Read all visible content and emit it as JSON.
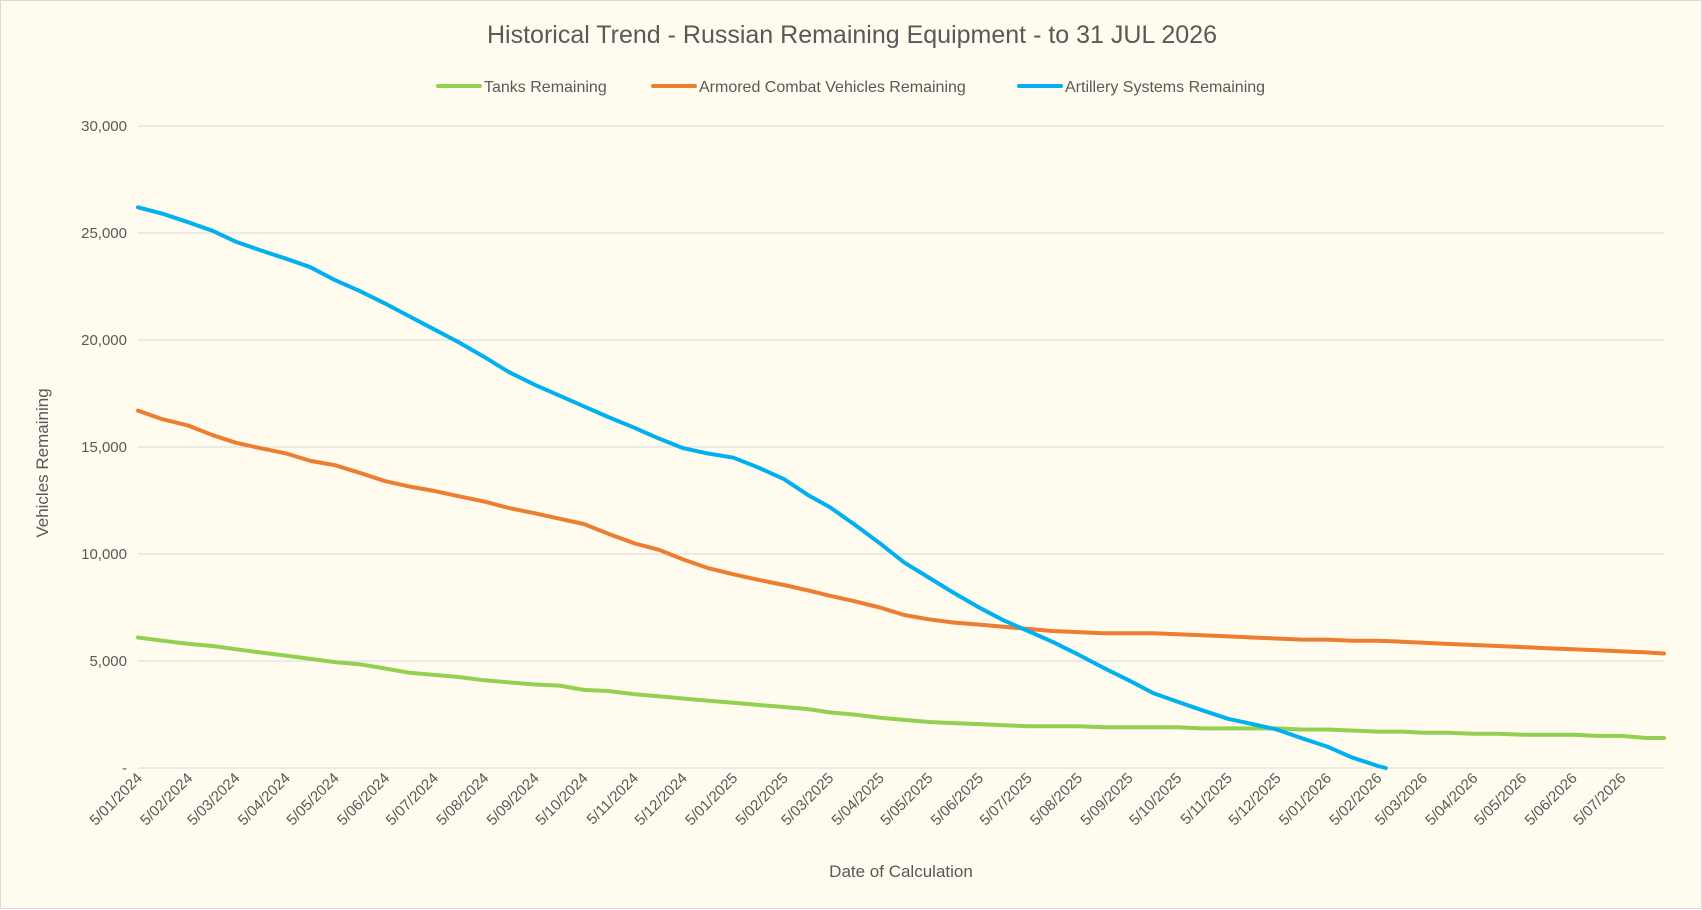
{
  "chart_data": {
    "type": "line",
    "title": "Historical Trend - Russian Remaining Equipment - to 31 JUL 2026",
    "xlabel": "Date of Calculation",
    "ylabel": "Vehicles Remaining",
    "ylim": [
      0,
      30000
    ],
    "y_ticks": [
      0,
      5000,
      10000,
      15000,
      20000,
      25000,
      30000
    ],
    "y_tick_labels": [
      "-",
      "5,000",
      "10,000",
      "15,000",
      "20,000",
      "25,000",
      "30,000"
    ],
    "x_range": [
      "2024-01-05",
      "2026-07-31"
    ],
    "x_tick_dates": [
      "2024-01-05",
      "2024-02-05",
      "2024-03-05",
      "2024-04-05",
      "2024-05-05",
      "2024-06-05",
      "2024-07-05",
      "2024-08-05",
      "2024-09-05",
      "2024-10-05",
      "2024-11-05",
      "2024-12-05",
      "2025-01-05",
      "2025-02-05",
      "2025-03-05",
      "2025-04-05",
      "2025-05-05",
      "2025-06-05",
      "2025-07-05",
      "2025-08-05",
      "2025-09-05",
      "2025-10-05",
      "2025-11-05",
      "2025-12-05",
      "2026-01-05",
      "2026-02-05",
      "2026-03-05",
      "2026-04-05",
      "2026-05-05",
      "2026-06-05",
      "2026-07-05"
    ],
    "x_tick_labels": [
      "5/01/2024",
      "5/02/2024",
      "5/03/2024",
      "5/04/2024",
      "5/05/2024",
      "5/06/2024",
      "5/07/2024",
      "5/08/2024",
      "5/09/2024",
      "5/10/2024",
      "5/11/2024",
      "5/12/2024",
      "5/01/2025",
      "5/02/2025",
      "5/03/2025",
      "5/04/2025",
      "5/05/2025",
      "5/06/2025",
      "5/07/2025",
      "5/08/2025",
      "5/09/2025",
      "5/10/2025",
      "5/11/2025",
      "5/12/2025",
      "5/01/2026",
      "5/02/2026",
      "5/03/2026",
      "5/04/2026",
      "5/05/2026",
      "5/06/2026",
      "5/07/2026"
    ],
    "grid": true,
    "legend_position": "top",
    "series": [
      {
        "name": "Tanks Remaining",
        "color": "#92d050",
        "points": [
          [
            "2024-01-05",
            6100
          ],
          [
            "2024-01-20",
            5950
          ],
          [
            "2024-02-05",
            5800
          ],
          [
            "2024-02-20",
            5700
          ],
          [
            "2024-03-05",
            5550
          ],
          [
            "2024-03-20",
            5400
          ],
          [
            "2024-04-05",
            5250
          ],
          [
            "2024-04-20",
            5100
          ],
          [
            "2024-05-05",
            4950
          ],
          [
            "2024-05-20",
            4850
          ],
          [
            "2024-06-05",
            4650
          ],
          [
            "2024-06-20",
            4450
          ],
          [
            "2024-07-05",
            4350
          ],
          [
            "2024-07-20",
            4250
          ],
          [
            "2024-08-05",
            4100
          ],
          [
            "2024-08-20",
            4000
          ],
          [
            "2024-09-05",
            3900
          ],
          [
            "2024-09-20",
            3850
          ],
          [
            "2024-10-05",
            3650
          ],
          [
            "2024-10-20",
            3600
          ],
          [
            "2024-11-05",
            3450
          ],
          [
            "2024-11-20",
            3350
          ],
          [
            "2024-12-05",
            3250
          ],
          [
            "2024-12-20",
            3150
          ],
          [
            "2025-01-05",
            3050
          ],
          [
            "2025-01-20",
            2950
          ],
          [
            "2025-02-05",
            2850
          ],
          [
            "2025-02-20",
            2750
          ],
          [
            "2025-03-05",
            2600
          ],
          [
            "2025-03-20",
            2500
          ],
          [
            "2025-04-05",
            2350
          ],
          [
            "2025-04-20",
            2250
          ],
          [
            "2025-05-05",
            2150
          ],
          [
            "2025-05-20",
            2100
          ],
          [
            "2025-06-05",
            2050
          ],
          [
            "2025-06-20",
            2000
          ],
          [
            "2025-07-05",
            1950
          ],
          [
            "2025-07-20",
            1950
          ],
          [
            "2025-08-05",
            1950
          ],
          [
            "2025-08-20",
            1900
          ],
          [
            "2025-09-05",
            1900
          ],
          [
            "2025-09-20",
            1900
          ],
          [
            "2025-10-05",
            1900
          ],
          [
            "2025-10-20",
            1850
          ],
          [
            "2025-11-05",
            1850
          ],
          [
            "2025-11-20",
            1850
          ],
          [
            "2025-12-05",
            1850
          ],
          [
            "2025-12-20",
            1800
          ],
          [
            "2026-01-05",
            1800
          ],
          [
            "2026-01-20",
            1750
          ],
          [
            "2026-02-05",
            1700
          ],
          [
            "2026-02-20",
            1700
          ],
          [
            "2026-03-05",
            1650
          ],
          [
            "2026-03-20",
            1650
          ],
          [
            "2026-04-05",
            1600
          ],
          [
            "2026-04-20",
            1600
          ],
          [
            "2026-05-05",
            1550
          ],
          [
            "2026-05-20",
            1550
          ],
          [
            "2026-06-05",
            1550
          ],
          [
            "2026-06-20",
            1500
          ],
          [
            "2026-07-05",
            1500
          ],
          [
            "2026-07-20",
            1400
          ],
          [
            "2026-07-31",
            1400
          ]
        ]
      },
      {
        "name": "Armored Combat Vehicles Remaining",
        "color": "#ed7d31",
        "points": [
          [
            "2024-01-05",
            16700
          ],
          [
            "2024-01-20",
            16300
          ],
          [
            "2024-02-05",
            16000
          ],
          [
            "2024-02-20",
            15550
          ],
          [
            "2024-03-05",
            15200
          ],
          [
            "2024-03-20",
            14950
          ],
          [
            "2024-04-05",
            14700
          ],
          [
            "2024-04-20",
            14350
          ],
          [
            "2024-05-05",
            14150
          ],
          [
            "2024-05-20",
            13800
          ],
          [
            "2024-06-05",
            13400
          ],
          [
            "2024-06-20",
            13150
          ],
          [
            "2024-07-05",
            12950
          ],
          [
            "2024-07-20",
            12700
          ],
          [
            "2024-08-05",
            12450
          ],
          [
            "2024-08-20",
            12150
          ],
          [
            "2024-09-05",
            11900
          ],
          [
            "2024-09-20",
            11650
          ],
          [
            "2024-10-05",
            11400
          ],
          [
            "2024-10-20",
            10950
          ],
          [
            "2024-11-05",
            10500
          ],
          [
            "2024-11-20",
            10200
          ],
          [
            "2024-12-05",
            9750
          ],
          [
            "2024-12-20",
            9350
          ],
          [
            "2025-01-05",
            9050
          ],
          [
            "2025-01-20",
            8800
          ],
          [
            "2025-02-05",
            8550
          ],
          [
            "2025-02-20",
            8300
          ],
          [
            "2025-03-05",
            8050
          ],
          [
            "2025-03-20",
            7800
          ],
          [
            "2025-04-05",
            7500
          ],
          [
            "2025-04-20",
            7150
          ],
          [
            "2025-05-05",
            6950
          ],
          [
            "2025-05-20",
            6800
          ],
          [
            "2025-06-05",
            6700
          ],
          [
            "2025-06-20",
            6600
          ],
          [
            "2025-07-05",
            6500
          ],
          [
            "2025-07-20",
            6400
          ],
          [
            "2025-08-05",
            6350
          ],
          [
            "2025-08-20",
            6300
          ],
          [
            "2025-09-05",
            6300
          ],
          [
            "2025-09-20",
            6300
          ],
          [
            "2025-10-05",
            6250
          ],
          [
            "2025-10-20",
            6200
          ],
          [
            "2025-11-05",
            6150
          ],
          [
            "2025-11-20",
            6100
          ],
          [
            "2025-12-05",
            6050
          ],
          [
            "2025-12-20",
            6000
          ],
          [
            "2026-01-05",
            6000
          ],
          [
            "2026-01-20",
            5950
          ],
          [
            "2026-02-05",
            5950
          ],
          [
            "2026-02-20",
            5900
          ],
          [
            "2026-03-05",
            5850
          ],
          [
            "2026-03-20",
            5800
          ],
          [
            "2026-04-05",
            5750
          ],
          [
            "2026-04-20",
            5700
          ],
          [
            "2026-05-05",
            5650
          ],
          [
            "2026-05-20",
            5600
          ],
          [
            "2026-06-05",
            5550
          ],
          [
            "2026-06-20",
            5500
          ],
          [
            "2026-07-05",
            5450
          ],
          [
            "2026-07-20",
            5400
          ],
          [
            "2026-07-31",
            5350
          ]
        ]
      },
      {
        "name": "Artillery Systems Remaining",
        "color": "#00b0f0",
        "points": [
          [
            "2024-01-05",
            26200
          ],
          [
            "2024-01-20",
            25900
          ],
          [
            "2024-02-05",
            25500
          ],
          [
            "2024-02-20",
            25100
          ],
          [
            "2024-03-05",
            24600
          ],
          [
            "2024-03-20",
            24200
          ],
          [
            "2024-04-05",
            23800
          ],
          [
            "2024-04-20",
            23400
          ],
          [
            "2024-05-05",
            22800
          ],
          [
            "2024-05-20",
            22300
          ],
          [
            "2024-06-05",
            21700
          ],
          [
            "2024-06-20",
            21100
          ],
          [
            "2024-07-05",
            20500
          ],
          [
            "2024-07-20",
            19900
          ],
          [
            "2024-08-05",
            19200
          ],
          [
            "2024-08-20",
            18500
          ],
          [
            "2024-09-05",
            17900
          ],
          [
            "2024-09-20",
            17400
          ],
          [
            "2024-10-05",
            16900
          ],
          [
            "2024-10-20",
            16400
          ],
          [
            "2024-11-05",
            15900
          ],
          [
            "2024-11-20",
            15400
          ],
          [
            "2024-12-05",
            14950
          ],
          [
            "2024-12-20",
            14700
          ],
          [
            "2025-01-05",
            14500
          ],
          [
            "2025-01-20",
            14050
          ],
          [
            "2025-02-05",
            13500
          ],
          [
            "2025-02-20",
            12750
          ],
          [
            "2025-03-05",
            12200
          ],
          [
            "2025-03-20",
            11400
          ],
          [
            "2025-04-05",
            10500
          ],
          [
            "2025-04-20",
            9600
          ],
          [
            "2025-05-05",
            8900
          ],
          [
            "2025-05-20",
            8200
          ],
          [
            "2025-06-05",
            7500
          ],
          [
            "2025-06-20",
            6900
          ],
          [
            "2025-07-05",
            6400
          ],
          [
            "2025-07-20",
            5900
          ],
          [
            "2025-08-05",
            5300
          ],
          [
            "2025-08-20",
            4700
          ],
          [
            "2025-09-05",
            4100
          ],
          [
            "2025-09-20",
            3500
          ],
          [
            "2025-10-05",
            3100
          ],
          [
            "2025-10-20",
            2700
          ],
          [
            "2025-11-05",
            2300
          ],
          [
            "2025-11-20",
            2050
          ],
          [
            "2025-12-05",
            1800
          ],
          [
            "2025-12-20",
            1400
          ],
          [
            "2026-01-05",
            1000
          ],
          [
            "2026-01-20",
            500
          ],
          [
            "2026-02-05",
            100
          ],
          [
            "2026-02-10",
            0
          ]
        ]
      }
    ]
  }
}
